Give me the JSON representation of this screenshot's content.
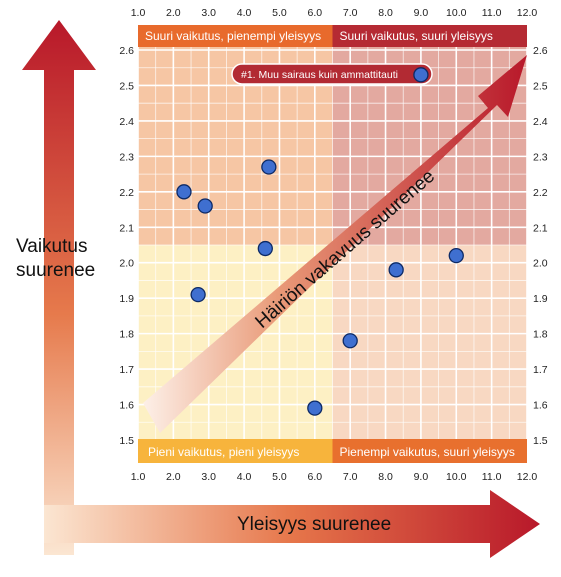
{
  "chart_data": {
    "type": "scatter",
    "x_ticks": [
      "1.0",
      "2.0",
      "3.0",
      "4.0",
      "5.0",
      "6.0",
      "7.0",
      "8.0",
      "9.0",
      "10.0",
      "11.0",
      "12.0"
    ],
    "y_ticks": [
      "1.5",
      "1.6",
      "1.7",
      "1.8",
      "1.9",
      "2.0",
      "2.1",
      "2.2",
      "2.3",
      "2.4",
      "2.5",
      "2.6"
    ],
    "xlim": [
      1.0,
      12.0
    ],
    "ylim": [
      1.5,
      2.6
    ],
    "x_split": 6.5,
    "y_split": 2.05,
    "grid": true,
    "points": [
      {
        "x": 2.3,
        "y": 2.2
      },
      {
        "x": 2.9,
        "y": 2.16
      },
      {
        "x": 4.7,
        "y": 2.27
      },
      {
        "x": 4.6,
        "y": 2.04
      },
      {
        "x": 2.7,
        "y": 1.91
      },
      {
        "x": 6.0,
        "y": 1.59
      },
      {
        "x": 7.0,
        "y": 1.78
      },
      {
        "x": 8.3,
        "y": 1.98
      },
      {
        "x": 10.0,
        "y": 2.02
      },
      {
        "x": 9.0,
        "y": 2.53
      }
    ],
    "quadrants": {
      "top_left": "Suuri vaikutus, pienempi yleisyys",
      "top_right": "Suuri vaikutus, suuri yleisyys",
      "bottom_left": "Pieni vaikutus, pieni yleisyys",
      "bottom_right": "Pienempi vaikutus, suuri yleisyys"
    },
    "callout": "#1. Muu sairaus kuin ammattitauti",
    "ylabel": [
      "Vaikutus",
      "suurenee"
    ],
    "xlabel": "Yleisyys suurenee",
    "diagonal_label": "Häiriön vakavuus suurenee"
  },
  "colors": {
    "point_fill": "#3f6fd0",
    "point_stroke": "#0d2a66",
    "quad_tl": "#f6c6a4",
    "quad_tr": "#e3a9a0",
    "quad_bl": "#fdf0c4",
    "quad_br": "#f8d8c2",
    "label_tl": "#e86a2c",
    "label_tr": "#b52a33",
    "label_bl": "#f7b43c",
    "label_br": "#e8702e",
    "arrow": "#c02631"
  }
}
